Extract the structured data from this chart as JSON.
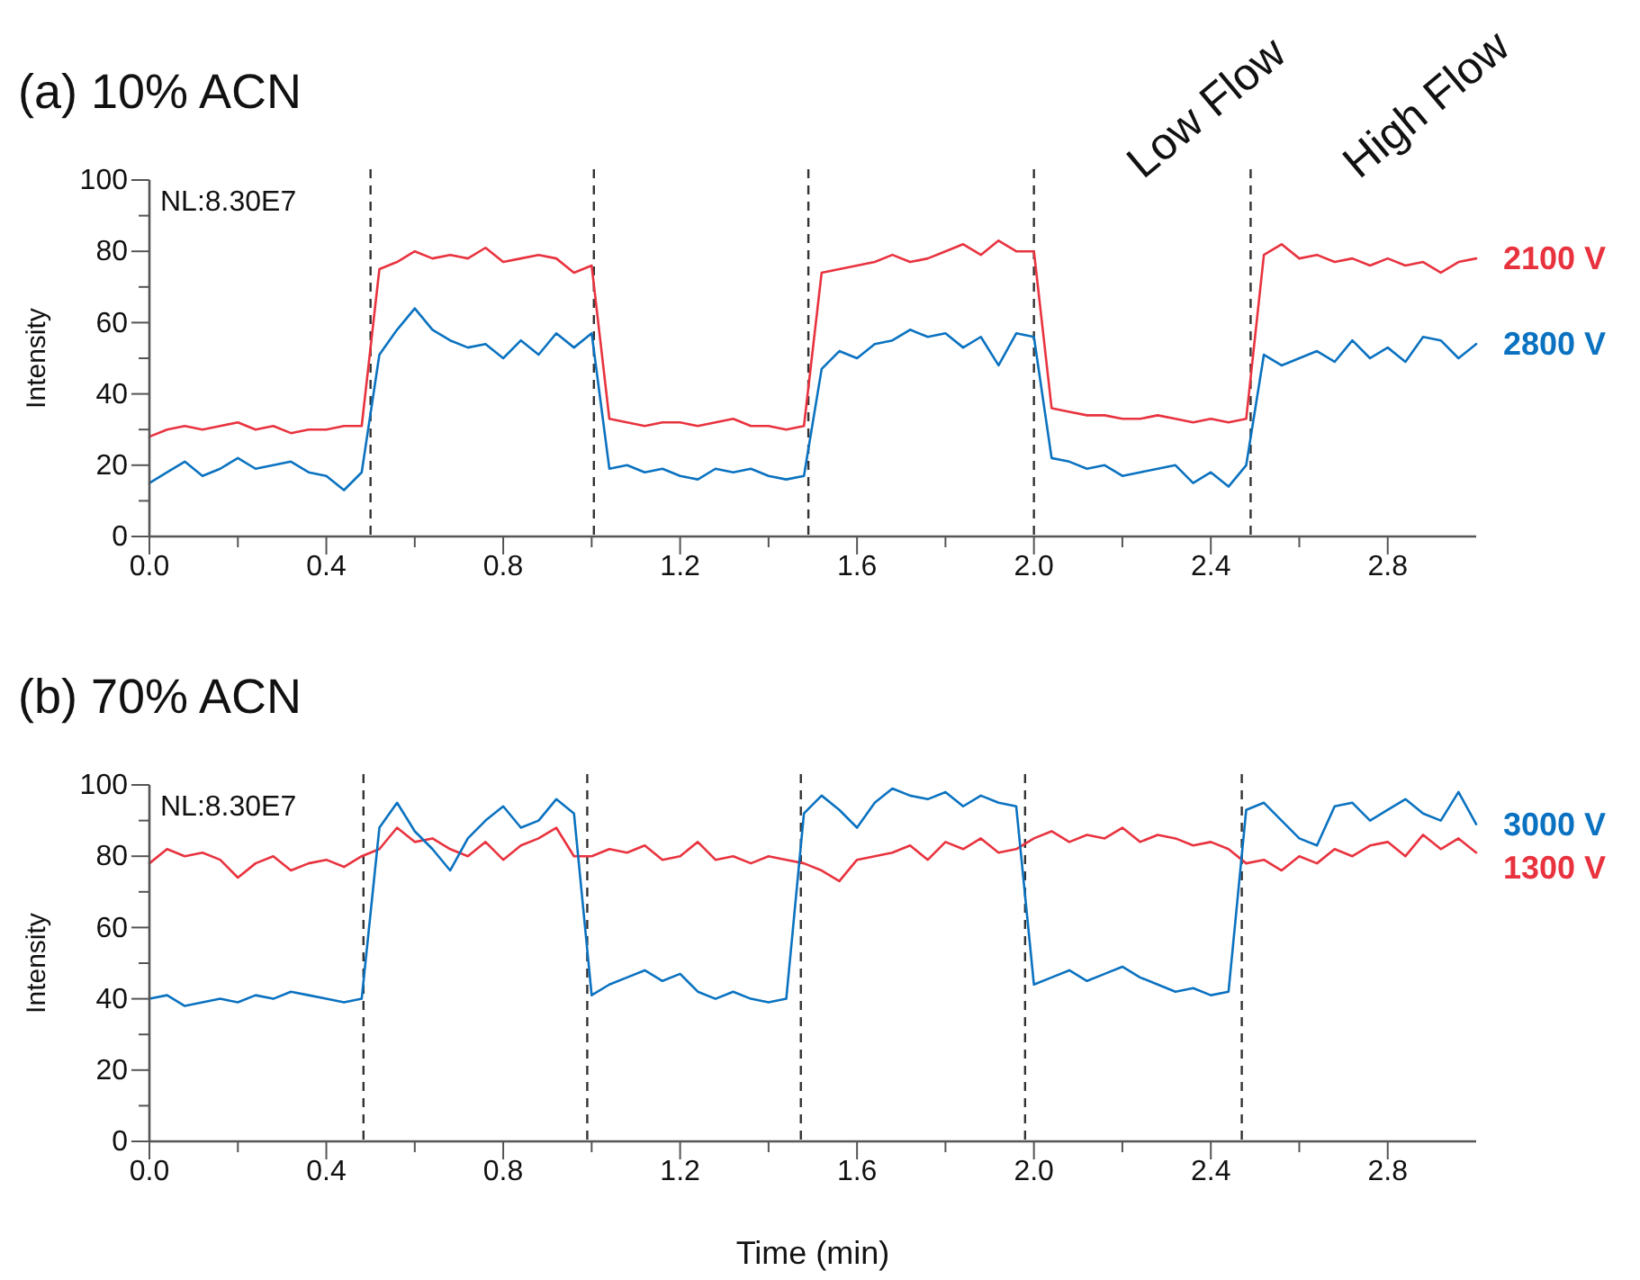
{
  "chart_data": [
    {
      "type": "line",
      "title": "(a) 10% ACN",
      "ylabel": "Intensity",
      "legend": false,
      "line_style": "solid",
      "marker": "none",
      "annotations": [
        "NL:8.30E7",
        "Low Flow",
        "High Flow"
      ],
      "x": [
        0,
        0.04,
        0.08,
        0.12,
        0.16,
        0.2,
        0.24,
        0.28,
        0.32,
        0.36,
        0.4,
        0.44,
        0.48,
        0.52,
        0.56,
        0.6,
        0.64,
        0.68,
        0.72,
        0.76,
        0.8,
        0.84,
        0.88,
        0.92,
        0.96,
        1.0,
        1.04,
        1.08,
        1.12,
        1.16,
        1.2,
        1.24,
        1.28,
        1.32,
        1.36,
        1.4,
        1.44,
        1.48,
        1.52,
        1.56,
        1.6,
        1.64,
        1.68,
        1.72,
        1.76,
        1.8,
        1.84,
        1.88,
        1.92,
        1.96,
        2.0,
        2.04,
        2.08,
        2.12,
        2.16,
        2.2,
        2.24,
        2.28,
        2.32,
        2.36,
        2.4,
        2.44,
        2.48,
        2.52,
        2.56,
        2.6,
        2.64,
        2.68,
        2.72,
        2.76,
        2.8,
        2.84,
        2.88,
        2.92,
        2.96,
        3.0
      ],
      "series": [
        {
          "name": "2100 V",
          "color": "#e8333f",
          "values": [
            28,
            30,
            31,
            30,
            31,
            32,
            30,
            31,
            29,
            30,
            30,
            31,
            31,
            75,
            77,
            80,
            78,
            79,
            78,
            81,
            77,
            78,
            79,
            78,
            74,
            76,
            33,
            32,
            31,
            32,
            32,
            31,
            32,
            33,
            31,
            31,
            30,
            31,
            74,
            75,
            76,
            77,
            79,
            77,
            78,
            80,
            82,
            79,
            83,
            80,
            80,
            36,
            35,
            34,
            34,
            33,
            33,
            34,
            33,
            32,
            33,
            32,
            33,
            79,
            82,
            78,
            79,
            77,
            78,
            76,
            78,
            76,
            77,
            74,
            77,
            78
          ]
        },
        {
          "name": "2800 V",
          "color": "#0a72c0",
          "values": [
            15,
            18,
            21,
            17,
            19,
            22,
            19,
            20,
            21,
            18,
            17,
            13,
            18,
            51,
            58,
            64,
            58,
            55,
            53,
            54,
            50,
            55,
            51,
            57,
            53,
            57,
            19,
            20,
            18,
            19,
            17,
            16,
            19,
            18,
            19,
            17,
            16,
            17,
            47,
            52,
            50,
            54,
            55,
            58,
            56,
            57,
            53,
            56,
            48,
            57,
            56,
            22,
            21,
            19,
            20,
            17,
            18,
            19,
            20,
            15,
            18,
            14,
            20,
            51,
            48,
            50,
            52,
            49,
            55,
            50,
            53,
            49,
            56,
            55,
            50,
            54
          ]
        }
      ],
      "xlim": [
        0,
        3.0
      ],
      "xticks": [
        {
          "value": 0,
          "label": "0.0"
        },
        {
          "value": 0.2,
          "label": null
        },
        {
          "value": 0.4,
          "label": "0.4"
        },
        {
          "value": 0.6,
          "label": null
        },
        {
          "value": 0.8,
          "label": "0.8"
        },
        {
          "value": 1.0,
          "label": null
        },
        {
          "value": 1.2,
          "label": "1.2"
        },
        {
          "value": 1.4,
          "label": null
        },
        {
          "value": 1.6,
          "label": "1.6"
        },
        {
          "value": 1.8,
          "label": null
        },
        {
          "value": 2.0,
          "label": "2.0"
        },
        {
          "value": 2.2,
          "label": null
        },
        {
          "value": 2.4,
          "label": "2.4"
        },
        {
          "value": 2.6,
          "label": null
        },
        {
          "value": 2.8,
          "label": "2.8"
        }
      ],
      "ylim": [
        0,
        100
      ],
      "yticks": [
        0,
        {
          "value": 10,
          "label": null
        },
        20,
        {
          "value": 30,
          "label": null
        },
        40,
        {
          "value": 50,
          "label": null
        },
        60,
        {
          "value": 70,
          "label": null
        },
        80,
        {
          "value": 90,
          "label": null
        },
        100
      ],
      "ref_lines": [
        {
          "axis": "x",
          "value": 0.5,
          "color": "#333333",
          "line_style": "dashed"
        },
        {
          "axis": "x",
          "value": 1.005,
          "color": "#333333",
          "line_style": "dashed"
        },
        {
          "axis": "x",
          "value": 1.49,
          "color": "#333333",
          "line_style": "dashed"
        },
        {
          "axis": "x",
          "value": 2.0,
          "color": "#333333",
          "line_style": "dashed"
        },
        {
          "axis": "x",
          "value": 2.49,
          "color": "#333333",
          "line_style": "dashed"
        }
      ]
    },
    {
      "type": "line",
      "title": "(b) 70% ACN",
      "xlabel": "Time (min)",
      "ylabel": "Intensity",
      "legend": false,
      "line_style": "solid",
      "marker": "none",
      "annotations": [
        "NL:8.30E7"
      ],
      "x": [
        0,
        0.04,
        0.08,
        0.12,
        0.16,
        0.2,
        0.24,
        0.28,
        0.32,
        0.36,
        0.4,
        0.44,
        0.48,
        0.52,
        0.56,
        0.6,
        0.64,
        0.68,
        0.72,
        0.76,
        0.8,
        0.84,
        0.88,
        0.92,
        0.96,
        1.0,
        1.04,
        1.08,
        1.12,
        1.16,
        1.2,
        1.24,
        1.28,
        1.32,
        1.36,
        1.4,
        1.44,
        1.48,
        1.52,
        1.56,
        1.6,
        1.64,
        1.68,
        1.72,
        1.76,
        1.8,
        1.84,
        1.88,
        1.92,
        1.96,
        2.0,
        2.04,
        2.08,
        2.12,
        2.16,
        2.2,
        2.24,
        2.28,
        2.32,
        2.36,
        2.4,
        2.44,
        2.48,
        2.52,
        2.56,
        2.6,
        2.64,
        2.68,
        2.72,
        2.76,
        2.8,
        2.84,
        2.88,
        2.92,
        2.96,
        3.0
      ],
      "series": [
        {
          "name": "3000 V",
          "color": "#0a72c0",
          "values": [
            40,
            41,
            38,
            39,
            40,
            39,
            41,
            40,
            42,
            41,
            40,
            39,
            40,
            88,
            95,
            87,
            82,
            76,
            85,
            90,
            94,
            88,
            90,
            96,
            92,
            41,
            44,
            46,
            48,
            45,
            47,
            42,
            40,
            42,
            40,
            39,
            40,
            92,
            97,
            93,
            88,
            95,
            99,
            97,
            96,
            98,
            94,
            97,
            95,
            94,
            44,
            46,
            48,
            45,
            47,
            49,
            46,
            44,
            42,
            43,
            41,
            42,
            93,
            95,
            90,
            85,
            83,
            94,
            95,
            90,
            93,
            96,
            92,
            90,
            98,
            89
          ]
        },
        {
          "name": "1300 V",
          "color": "#e8333f",
          "values": [
            78,
            82,
            80,
            81,
            79,
            74,
            78,
            80,
            76,
            78,
            79,
            77,
            80,
            82,
            88,
            84,
            85,
            82,
            80,
            84,
            79,
            83,
            85,
            88,
            80,
            80,
            82,
            81,
            83,
            79,
            80,
            84,
            79,
            80,
            78,
            80,
            79,
            78,
            76,
            73,
            79,
            80,
            81,
            83,
            79,
            84,
            82,
            85,
            81,
            82,
            85,
            87,
            84,
            86,
            85,
            88,
            84,
            86,
            85,
            83,
            84,
            82,
            78,
            79,
            76,
            80,
            78,
            82,
            80,
            83,
            84,
            80,
            86,
            82,
            85,
            81
          ]
        }
      ],
      "xlim": [
        0,
        3.0
      ],
      "xticks": [
        {
          "value": 0,
          "label": "0.0"
        },
        {
          "value": 0.2,
          "label": null
        },
        {
          "value": 0.4,
          "label": "0.4"
        },
        {
          "value": 0.6,
          "label": null
        },
        {
          "value": 0.8,
          "label": "0.8"
        },
        {
          "value": 1.0,
          "label": null
        },
        {
          "value": 1.2,
          "label": "1.2"
        },
        {
          "value": 1.4,
          "label": null
        },
        {
          "value": 1.6,
          "label": "1.6"
        },
        {
          "value": 1.8,
          "label": null
        },
        {
          "value": 2.0,
          "label": "2.0"
        },
        {
          "value": 2.2,
          "label": null
        },
        {
          "value": 2.4,
          "label": "2.4"
        },
        {
          "value": 2.6,
          "label": null
        },
        {
          "value": 2.8,
          "label": "2.8"
        }
      ],
      "ylim": [
        0,
        100
      ],
      "yticks": [
        0,
        {
          "value": 10,
          "label": null
        },
        20,
        {
          "value": 30,
          "label": null
        },
        40,
        {
          "value": 50,
          "label": null
        },
        60,
        {
          "value": 70,
          "label": null
        },
        80,
        {
          "value": 90,
          "label": null
        },
        100
      ],
      "ref_lines": [
        {
          "axis": "x",
          "value": 0.484,
          "color": "#333333",
          "line_style": "dashed"
        },
        {
          "axis": "x",
          "value": 0.99,
          "color": "#333333",
          "line_style": "dashed"
        },
        {
          "axis": "x",
          "value": 1.473,
          "color": "#333333",
          "line_style": "dashed"
        },
        {
          "axis": "x",
          "value": 1.98,
          "color": "#333333",
          "line_style": "dashed"
        },
        {
          "axis": "x",
          "value": 2.47,
          "color": "#333333",
          "line_style": "dashed"
        }
      ]
    }
  ]
}
